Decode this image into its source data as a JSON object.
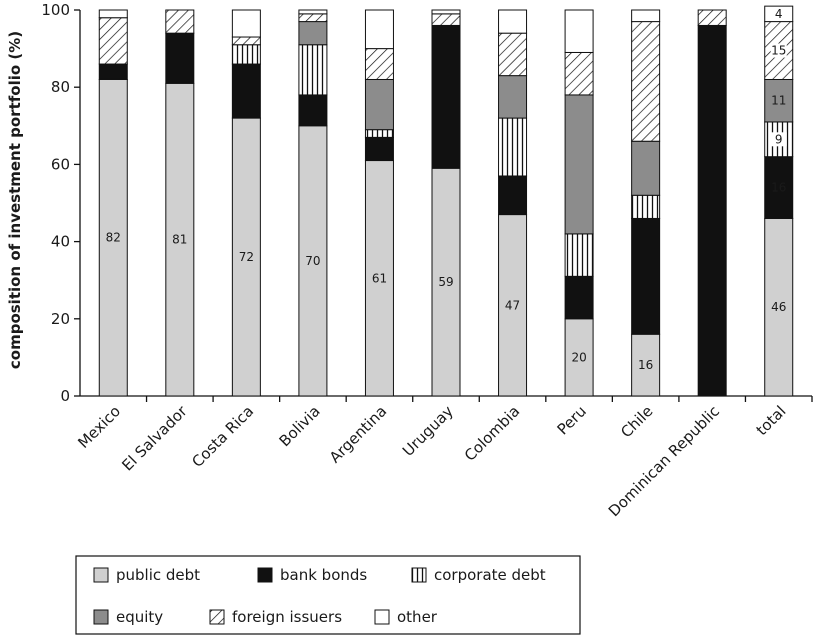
{
  "chart_data": {
    "type": "bar",
    "stacked": true,
    "ylabel": "composition of investment portfolio (%)",
    "ylim": [
      0,
      100
    ],
    "yticks": [
      "0",
      "20",
      "40",
      "60",
      "80",
      "100"
    ],
    "categories": [
      "Mexico",
      "El Salvador",
      "Costa Rica",
      "Bolivia",
      "Argentina",
      "Uruguay",
      "Colombia",
      "Peru",
      "Chile",
      "Dominican Republic",
      "total"
    ],
    "series": [
      {
        "name": "public debt",
        "pattern": "light-gray",
        "color": "#d0d0d0",
        "values": [
          82,
          81,
          72,
          70,
          61,
          59,
          47,
          20,
          16,
          0,
          46
        ],
        "labels": [
          "82",
          "81",
          "72",
          "70",
          "61",
          "59",
          "47",
          "20",
          "16",
          "",
          "46"
        ]
      },
      {
        "name": "bank bonds",
        "pattern": "black",
        "color": "#111111",
        "values": [
          4,
          13,
          14,
          8,
          6,
          37,
          10,
          11,
          30,
          96,
          16
        ],
        "labels": [
          "",
          "",
          "",
          "",
          "",
          "",
          "",
          "",
          "",
          "",
          "16"
        ]
      },
      {
        "name": "corporate debt",
        "pattern": "vertical-stripes",
        "color": "#ffffff",
        "values": [
          0,
          0,
          5,
          13,
          2,
          0,
          15,
          11,
          6,
          0,
          9
        ],
        "labels": [
          "",
          "",
          "",
          "",
          "",
          "",
          "",
          "",
          "",
          "",
          "9"
        ]
      },
      {
        "name": "equity",
        "pattern": "dark-gray",
        "color": "#8c8c8c",
        "values": [
          0,
          0,
          0,
          6,
          13,
          0,
          11,
          36,
          14,
          0,
          11
        ],
        "labels": [
          "",
          "",
          "",
          "",
          "",
          "",
          "",
          "",
          "",
          "",
          "11"
        ]
      },
      {
        "name": "foreign issuers",
        "pattern": "diagonal-hatch",
        "color": "#ffffff",
        "values": [
          12,
          6,
          2,
          2,
          8,
          3,
          11,
          11,
          31,
          4,
          15
        ],
        "labels": [
          "",
          "",
          "",
          "",
          "",
          "",
          "",
          "",
          "",
          "",
          "15"
        ]
      },
      {
        "name": "other",
        "pattern": "white",
        "color": "#ffffff",
        "values": [
          2,
          0,
          7,
          1,
          10,
          1,
          6,
          11,
          3,
          0,
          4
        ],
        "labels": [
          "",
          "",
          "",
          "",
          "",
          "",
          "",
          "",
          "",
          "",
          "4"
        ]
      }
    ],
    "legend_position": "bottom-left",
    "grid": false
  }
}
